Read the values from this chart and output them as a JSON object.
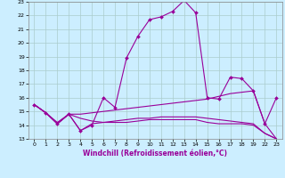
{
  "xlabel": "Windchill (Refroidissement éolien,°C)",
  "background_color": "#cceeff",
  "grid_color": "#aacccc",
  "line_color": "#990099",
  "xlim": [
    -0.5,
    21.5
  ],
  "ylim": [
    13,
    23
  ],
  "xtick_labels": [
    "0",
    "1",
    "2",
    "3",
    "4",
    "5",
    "6",
    "7",
    "8",
    "9",
    "10",
    "11",
    "12",
    "13",
    "14",
    "15",
    "16",
    "17",
    "18",
    "19",
    "22",
    "23"
  ],
  "ytick_labels": [
    "13",
    "14",
    "15",
    "16",
    "17",
    "18",
    "19",
    "20",
    "21",
    "22",
    "23"
  ],
  "lines": [
    {
      "xi": [
        0,
        1,
        2,
        3,
        4,
        5,
        6,
        7,
        8,
        9,
        10,
        11,
        12,
        13,
        14,
        15,
        16,
        17,
        18,
        19,
        20,
        21
      ],
      "y": [
        15.5,
        14.9,
        14.1,
        14.8,
        13.6,
        14.0,
        16.0,
        15.3,
        18.9,
        20.5,
        21.7,
        21.9,
        22.3,
        23.1,
        22.2,
        16.0,
        15.9,
        17.5,
        17.4,
        16.5,
        14.1,
        16.0
      ],
      "marker": true
    },
    {
      "xi": [
        0,
        1,
        2,
        3,
        4,
        5,
        6,
        7,
        8,
        9,
        10,
        11,
        12,
        13,
        14,
        15,
        16,
        17,
        18,
        19,
        20,
        21
      ],
      "y": [
        15.5,
        14.9,
        14.1,
        14.8,
        13.6,
        14.1,
        14.2,
        14.2,
        14.2,
        14.3,
        14.4,
        14.4,
        14.4,
        14.4,
        14.4,
        14.2,
        14.1,
        14.1,
        14.1,
        14.0,
        13.4,
        13.0
      ],
      "marker": false
    },
    {
      "xi": [
        0,
        1,
        2,
        3,
        4,
        5,
        6,
        7,
        8,
        9,
        10,
        11,
        12,
        13,
        14,
        15,
        16,
        17,
        18,
        19,
        20,
        21
      ],
      "y": [
        15.5,
        14.9,
        14.2,
        14.8,
        14.8,
        14.9,
        15.0,
        15.1,
        15.2,
        15.3,
        15.4,
        15.5,
        15.6,
        15.7,
        15.8,
        15.9,
        16.1,
        16.3,
        16.4,
        16.5,
        14.1,
        13.0
      ],
      "marker": false
    },
    {
      "xi": [
        0,
        1,
        2,
        3,
        4,
        5,
        6,
        7,
        8,
        9,
        10,
        11,
        12,
        13,
        14,
        15,
        16,
        17,
        18,
        19,
        20,
        21
      ],
      "y": [
        15.5,
        14.9,
        14.1,
        14.8,
        14.5,
        14.3,
        14.2,
        14.3,
        14.4,
        14.5,
        14.5,
        14.6,
        14.6,
        14.6,
        14.6,
        14.5,
        14.4,
        14.3,
        14.2,
        14.1,
        13.4,
        13.0
      ],
      "marker": false
    }
  ]
}
